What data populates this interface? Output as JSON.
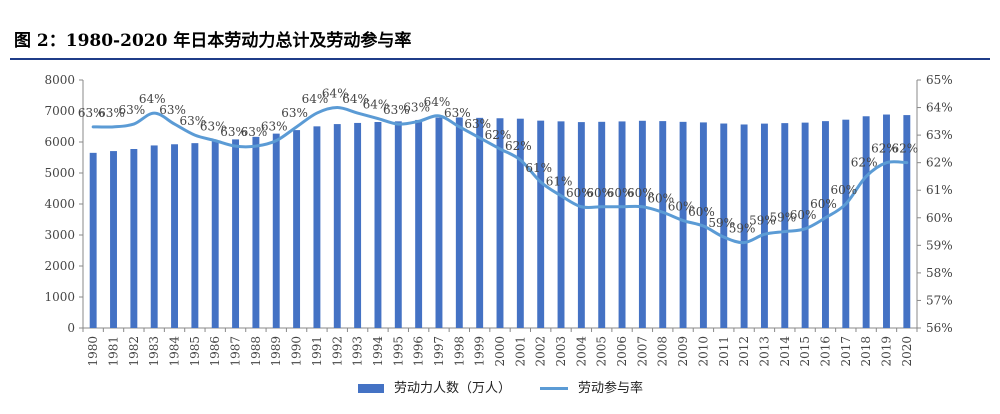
{
  "figure": {
    "title": "图 2：1980-2020 年日本劳动力总计及劳动参与率"
  },
  "colors": {
    "bar": "#4472c4",
    "line": "#5b9bd5",
    "rule": "#1f3c88"
  },
  "chart_data": {
    "type": "bar",
    "title": "",
    "xlabel": "",
    "ylabel": "",
    "categories": [
      "1980",
      "1981",
      "1982",
      "1983",
      "1984",
      "1985",
      "1986",
      "1987",
      "1988",
      "1989",
      "1990",
      "1991",
      "1992",
      "1993",
      "1994",
      "1995",
      "1996",
      "1997",
      "1998",
      "1999",
      "2000",
      "2001",
      "2002",
      "2003",
      "2004",
      "2005",
      "2006",
      "2007",
      "2008",
      "2009",
      "2010",
      "2011",
      "2012",
      "2013",
      "2014",
      "2015",
      "2016",
      "2017",
      "2018",
      "2019",
      "2020"
    ],
    "left_axis": {
      "ylim": [
        0,
        8000
      ],
      "ticks": [
        "0",
        "1000",
        "2000",
        "3000",
        "4000",
        "5000",
        "6000",
        "7000",
        "8000"
      ]
    },
    "right_axis": {
      "ylim": [
        56,
        65
      ],
      "ticks": [
        "56%",
        "57%",
        "58%",
        "59%",
        "60%",
        "61%",
        "62%",
        "63%",
        "64%",
        "65%"
      ]
    },
    "series": [
      {
        "name": "劳动力人数（万人）",
        "type": "bar",
        "axis": "left",
        "values": [
          5650,
          5707,
          5774,
          5889,
          5927,
          5963,
          6020,
          6084,
          6166,
          6270,
          6384,
          6505,
          6578,
          6615,
          6645,
          6666,
          6711,
          6787,
          6793,
          6779,
          6766,
          6752,
          6689,
          6666,
          6642,
          6651,
          6664,
          6684,
          6674,
          6650,
          6632,
          6596,
          6565,
          6593,
          6609,
          6625,
          6673,
          6720,
          6830,
          6886,
          6868
        ]
      },
      {
        "name": "劳动参与率",
        "type": "line",
        "axis": "right",
        "values": [
          63.3,
          63.3,
          63.4,
          63.8,
          63.4,
          63.0,
          62.8,
          62.6,
          62.6,
          62.8,
          63.3,
          63.8,
          64.0,
          63.8,
          63.6,
          63.4,
          63.5,
          63.7,
          63.3,
          62.9,
          62.5,
          62.1,
          61.3,
          60.8,
          60.4,
          60.4,
          60.4,
          60.4,
          60.2,
          59.9,
          59.7,
          59.3,
          59.1,
          59.4,
          59.5,
          59.6,
          60.0,
          60.5,
          61.5,
          62.0,
          62.0
        ],
        "labels": [
          "63%",
          "63%",
          "63%",
          "64%",
          "63%",
          "63%",
          "63%",
          "63%",
          "63%",
          "63%",
          "63%",
          "64%",
          "64%",
          "64%",
          "64%",
          "63%",
          "63%",
          "64%",
          "63%",
          "63%",
          "62%",
          "62%",
          "61%",
          "61%",
          "60%",
          "60%",
          "60%",
          "60%",
          "60%",
          "60%",
          "60%",
          "59%",
          "59%",
          "59%",
          "59%",
          "60%",
          "60%",
          "60%",
          "62%",
          "62%",
          "62%"
        ]
      }
    ],
    "legend_position": "bottom",
    "grid": false
  }
}
